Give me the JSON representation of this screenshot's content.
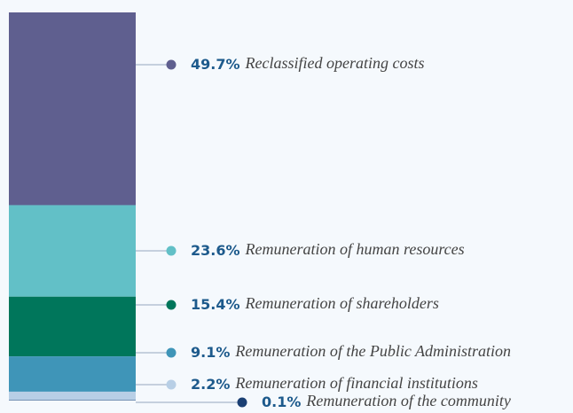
{
  "chart_data": {
    "type": "stacked-bar",
    "series": [
      {
        "name": "Reclassified operating costs",
        "color": "#5f5f8f",
        "values": [
          49.7
        ],
        "value_labels": [
          "49.7%"
        ]
      },
      {
        "name": "Remuneration of human resources",
        "color": "#62c0c7",
        "values": [
          23.6
        ],
        "value_labels": [
          "23.6%"
        ]
      },
      {
        "name": "Remuneration of shareholders",
        "color": "#00765b",
        "values": [
          15.4
        ],
        "value_labels": [
          "15.4%"
        ]
      },
      {
        "name": "Remuneration of the Public Administration",
        "color": "#3f95b8",
        "values": [
          9.1
        ],
        "value_labels": [
          "9.1%"
        ]
      },
      {
        "name": "Remuneration of financial institutions",
        "color": "#b8cfe6",
        "values": [
          2.2
        ],
        "value_labels": [
          "2.2%"
        ]
      },
      {
        "name": "Remuneration of the community",
        "color": "#1a3f73",
        "values": [
          0.1
        ],
        "value_labels": [
          "0.1%"
        ]
      }
    ]
  }
}
